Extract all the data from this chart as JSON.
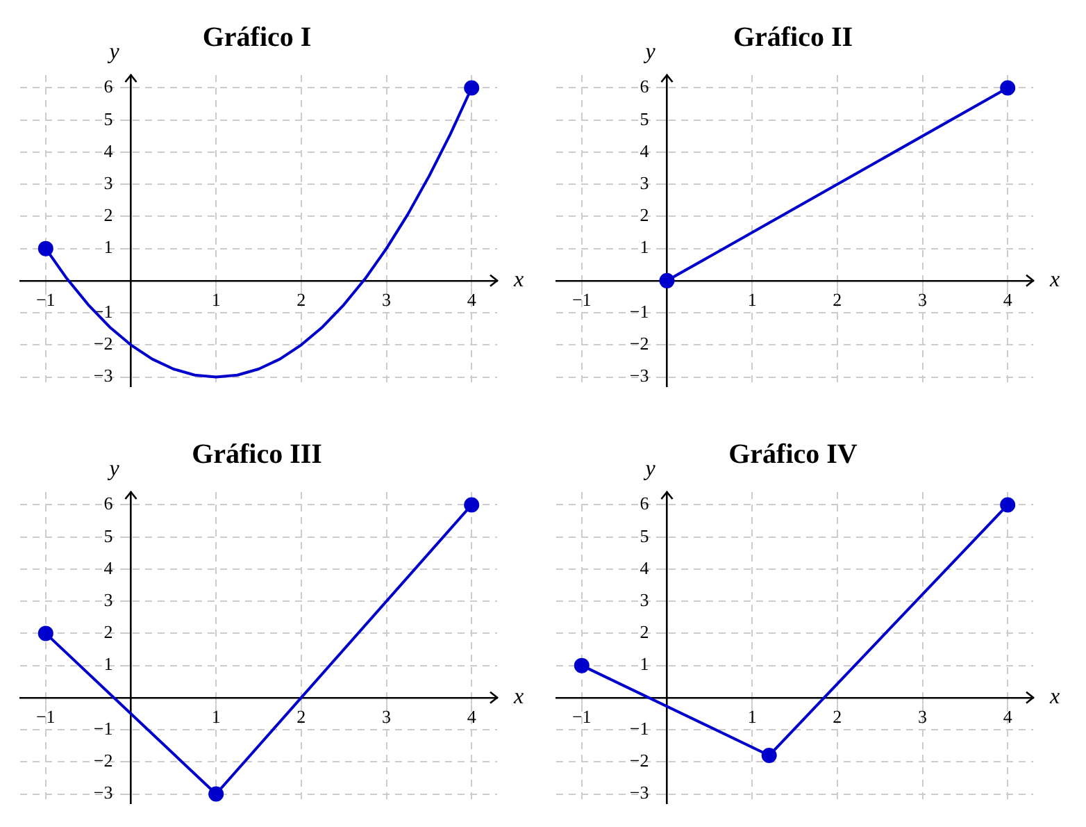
{
  "chart_data": [
    {
      "type": "line",
      "title": "Gráfico I",
      "xlabel": "x",
      "ylabel": "y",
      "xlim": [
        -1.3,
        4.3
      ],
      "ylim": [
        -3.3,
        6.4
      ],
      "xticks": [
        -1,
        1,
        2,
        3,
        4
      ],
      "yticks": [
        -3,
        -2,
        -1,
        1,
        2,
        3,
        4,
        5,
        6
      ],
      "grid": true,
      "legend": false,
      "series": [
        {
          "type": "line",
          "color": "#0000cc",
          "marker": "none",
          "x": [
            -1,
            -0.75,
            -0.5,
            -0.25,
            0,
            0.25,
            0.5,
            0.75,
            1,
            1.25,
            1.5,
            1.75,
            2,
            2.25,
            2.5,
            2.75,
            3,
            3.25,
            3.5,
            3.75,
            4
          ],
          "values": [
            1,
            0.06,
            -0.75,
            -1.44,
            -2,
            -2.44,
            -2.75,
            -2.94,
            -3,
            -2.94,
            -2.75,
            -2.44,
            -2,
            -1.44,
            -0.75,
            0.06,
            1,
            2.06,
            3.25,
            4.56,
            6
          ]
        },
        {
          "type": "scatter",
          "color": "#0000cc",
          "marker": "circle",
          "x": [
            -1,
            4
          ],
          "values": [
            1,
            6
          ]
        }
      ]
    },
    {
      "type": "line",
      "title": "Gráfico II",
      "xlabel": "x",
      "ylabel": "y",
      "xlim": [
        -1.3,
        4.3
      ],
      "ylim": [
        -3.3,
        6.4
      ],
      "xticks": [
        -1,
        1,
        2,
        3,
        4
      ],
      "yticks": [
        -3,
        -2,
        -1,
        1,
        2,
        3,
        4,
        5,
        6
      ],
      "grid": true,
      "legend": false,
      "series": [
        {
          "type": "line",
          "color": "#0000cc",
          "marker": "circle",
          "x": [
            0,
            4
          ],
          "values": [
            0,
            6
          ]
        }
      ]
    },
    {
      "type": "line",
      "title": "Gráfico III",
      "xlabel": "x",
      "ylabel": "y",
      "xlim": [
        -1.3,
        4.3
      ],
      "ylim": [
        -3.3,
        6.4
      ],
      "xticks": [
        -1,
        1,
        2,
        3,
        4
      ],
      "yticks": [
        -3,
        -2,
        -1,
        1,
        2,
        3,
        4,
        5,
        6
      ],
      "grid": true,
      "legend": false,
      "series": [
        {
          "type": "line",
          "color": "#0000cc",
          "marker": "circle",
          "x": [
            -1,
            1,
            4
          ],
          "values": [
            2,
            -3,
            6
          ]
        }
      ]
    },
    {
      "type": "line",
      "title": "Gráfico IV",
      "xlabel": "x",
      "ylabel": "y",
      "xlim": [
        -1.3,
        4.3
      ],
      "ylim": [
        -3.3,
        6.4
      ],
      "xticks": [
        -1,
        1,
        2,
        3,
        4
      ],
      "yticks": [
        -3,
        -2,
        -1,
        1,
        2,
        3,
        4,
        5,
        6
      ],
      "grid": true,
      "legend": false,
      "series": [
        {
          "type": "line",
          "color": "#0000cc",
          "marker": "circle",
          "x": [
            -1,
            1.2,
            4
          ],
          "values": [
            1,
            -1.8,
            6
          ]
        }
      ]
    }
  ]
}
